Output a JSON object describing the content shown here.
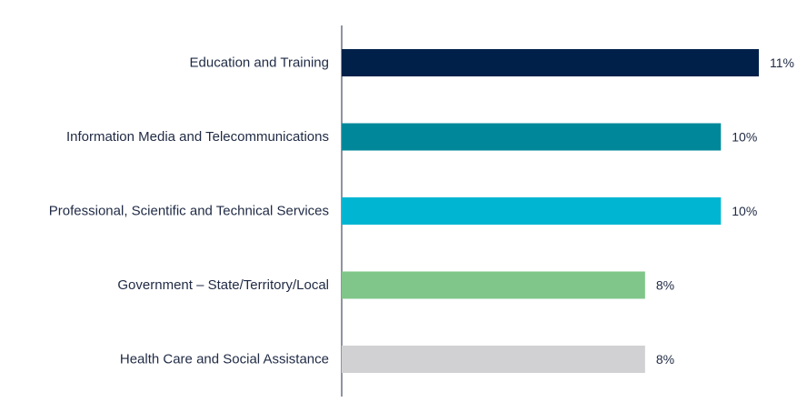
{
  "chart_data": {
    "type": "bar",
    "orientation": "horizontal",
    "title": "",
    "xlabel": "",
    "ylabel": "",
    "xlim": [
      0,
      11
    ],
    "grid": false,
    "categories": [
      "Education and Training",
      "Information Media and Telecommunications",
      "Professional, Scientific and Technical Services",
      "Government – State/Territory/Local",
      "Health Care and Social Assistance"
    ],
    "values": [
      11,
      10,
      10,
      8,
      8
    ],
    "value_labels": [
      "11%",
      "10%",
      "10%",
      "8%",
      "8%"
    ],
    "colors": [
      "#00204a",
      "#00889a",
      "#00b5d1",
      "#80c68a",
      "#d1d1d3"
    ]
  }
}
